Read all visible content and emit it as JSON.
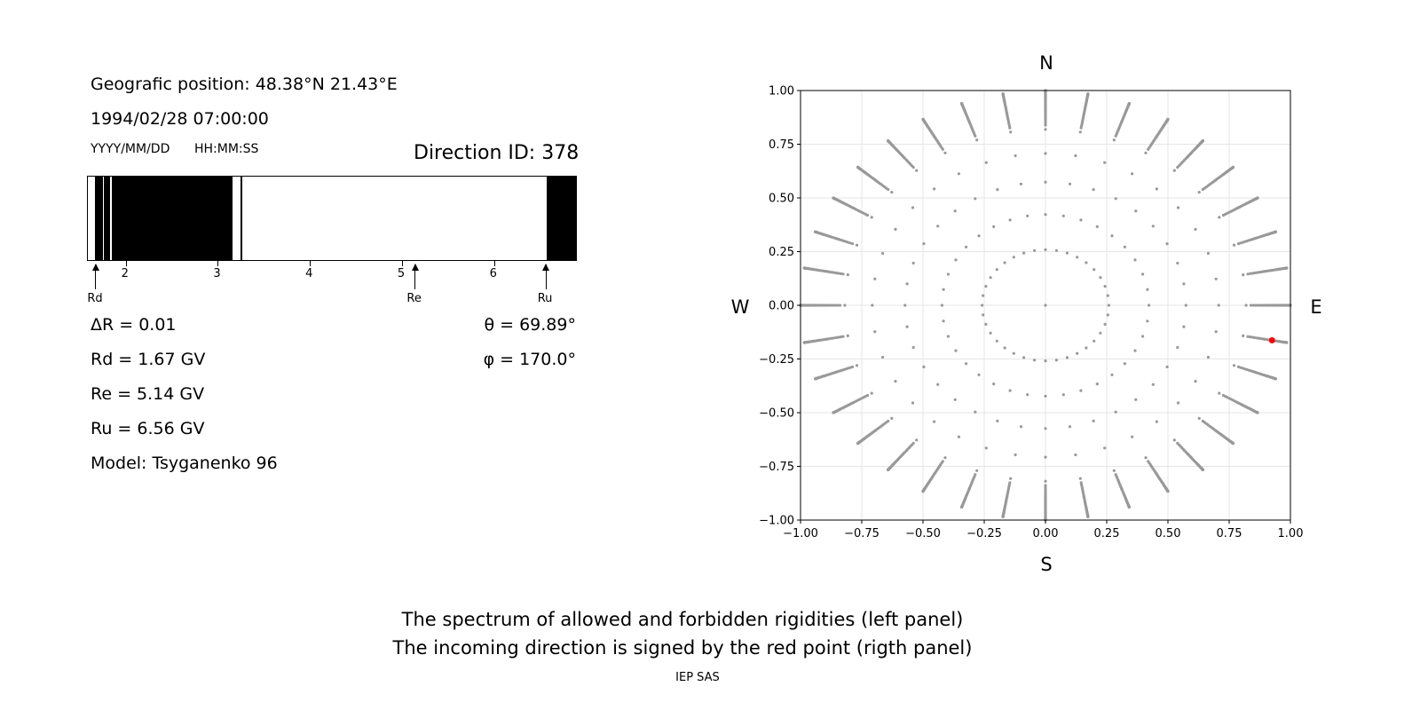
{
  "left_panel": {
    "position": "Geografic position: 48.38°N 21.43°E",
    "datetime": "1994/02/28 07:00:00",
    "date_fmt": "YYYY/MM/DD",
    "time_fmt": "HH:MM:SS",
    "direction": "Direction ID: 378",
    "delta_r": "ΔR = 0.01",
    "rd": "Rd = 1.67 GV",
    "re": "Re = 5.14 GV",
    "ru": "Ru = 6.56 GV",
    "model": "Model: Tsyganenko 96",
    "theta": "θ = 69.89°",
    "phi": "φ = 170.0°"
  },
  "footer": {
    "line1": "The spectrum of allowed and forbidden rigidities (left panel)",
    "line2": "The incoming direction is signed by the red point (rigth panel)",
    "credit": "IEP SAS"
  },
  "chart_data": [
    {
      "type": "spectrum",
      "title": "",
      "xlim": [
        1.58,
        6.9
      ],
      "ticks": [
        "2",
        "3",
        "4",
        "5",
        "6"
      ],
      "tick_values": [
        2,
        3,
        4,
        5,
        6
      ],
      "forbidden_bands": [
        [
          1.66,
          1.74
        ],
        [
          1.75,
          1.82
        ],
        [
          1.84,
          3.15
        ],
        [
          3.24,
          3.26
        ],
        [
          6.56,
          6.9
        ]
      ],
      "markers": [
        {
          "label": "Rd",
          "value": 1.67
        },
        {
          "label": "Re",
          "value": 5.14
        },
        {
          "label": "Ru",
          "value": 6.56
        }
      ]
    },
    {
      "type": "scatter",
      "title": "",
      "xlim": [
        -1.0,
        1.0
      ],
      "ylim": [
        -1.0,
        1.0
      ],
      "xticks": [
        "−1.00",
        "−0.75",
        "−0.50",
        "−0.25",
        "0.00",
        "0.25",
        "0.50",
        "0.75",
        "1.00"
      ],
      "yticks": [
        "−1.00",
        "−0.75",
        "−0.50",
        "−0.25",
        "0.00",
        "0.25",
        "0.50",
        "0.75",
        "1.00"
      ],
      "tick_values": [
        -1.0,
        -0.75,
        -0.5,
        -0.25,
        0.0,
        0.25,
        0.5,
        0.75,
        1.0
      ],
      "compass": {
        "N": "N",
        "S": "S",
        "E": "E",
        "W": "W"
      },
      "grid": true,
      "point_color": "#999999",
      "highlight_color": "#ff0000",
      "highlight_point": {
        "x": 0.925,
        "y": -0.163
      },
      "grid_pattern": {
        "rings_theta_deg": [
          0,
          15,
          25,
          35,
          45,
          55,
          65,
          75,
          85
        ],
        "azimuth_step_deg": 10,
        "radial_fine_theta_from_deg": 57,
        "radial_fine_theta_step_deg": 1,
        "radial_fine_theta_to_deg": 90
      }
    }
  ]
}
